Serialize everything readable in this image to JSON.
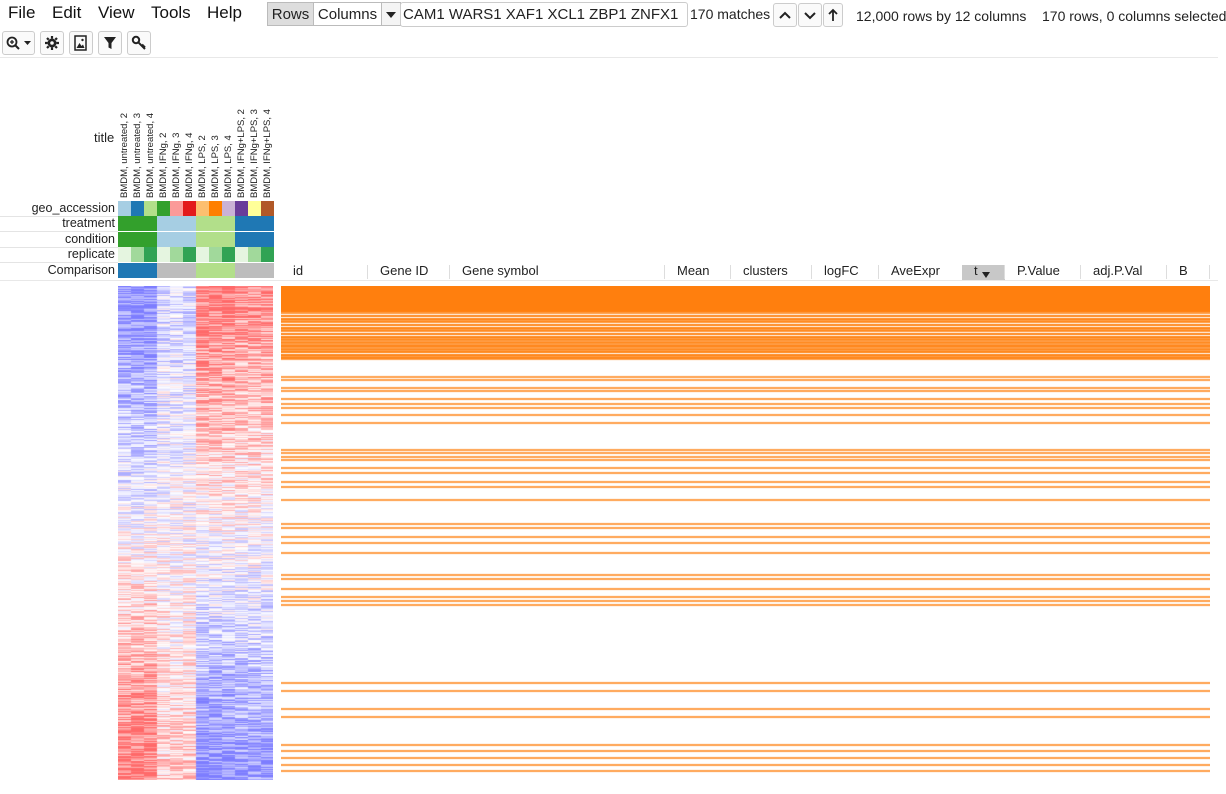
{
  "menu": [
    "File",
    "Edit",
    "View",
    "Tools",
    "Help"
  ],
  "toggle": {
    "rows": "Rows",
    "columns": "Columns"
  },
  "search": {
    "value": "CAM1 WARS1 XAF1 XCL1 ZBP1 ZNFX1"
  },
  "matches": "170 matches",
  "summary": {
    "dims": "12,000 rows by 12 columns",
    "selection": "170 rows, 0 columns selected"
  },
  "toolbar_icons": [
    "zoom-icon",
    "gear-icon",
    "image-icon",
    "filter-icon",
    "key-icon"
  ],
  "annotation_rows": [
    "geo_accession",
    "treatment",
    "condition",
    "replicate",
    "Comparison"
  ],
  "title_label": "title",
  "columns": [
    "BMDM, untreated, 2",
    "BMDM, untreated, 3",
    "BMDM, untreated, 4",
    "BMDM, IFNg, 2",
    "BMDM, IFNg, 3",
    "BMDM, IFNg, 4",
    "BMDM, LPS, 2",
    "BMDM, LPS, 3",
    "BMDM, LPS, 4",
    "BMDM, IFNg+LPS, 2",
    "BMDM, IFNg+LPS, 3",
    "BMDM, IFNg+LPS, 4"
  ],
  "annotation_colors": {
    "geo_accession": [
      "#a6cee3",
      "#1f78b4",
      "#b2df8a",
      "#33a02c",
      "#fb9a99",
      "#e31a1c",
      "#fdbf6f",
      "#ff7f00",
      "#cab2d6",
      "#6a3d9a",
      "#ffff99",
      "#b15928"
    ],
    "treatment": [
      "#33a02c",
      "#33a02c",
      "#33a02c",
      "#a6cee3",
      "#a6cee3",
      "#a6cee3",
      "#b2df8a",
      "#b2df8a",
      "#b2df8a",
      "#1f78b4",
      "#1f78b4",
      "#1f78b4"
    ],
    "condition": [
      "#33a02c",
      "#33a02c",
      "#33a02c",
      "#a6cee3",
      "#a6cee3",
      "#a6cee3",
      "#b2df8a",
      "#b2df8a",
      "#b2df8a",
      "#1f78b4",
      "#1f78b4",
      "#1f78b4"
    ],
    "replicate": [
      "#e5f5e0",
      "#a1d99b",
      "#31a354",
      "#e5f5e0",
      "#a1d99b",
      "#31a354",
      "#e5f5e0",
      "#a1d99b",
      "#31a354",
      "#e5f5e0",
      "#a1d99b",
      "#31a354"
    ],
    "Comparison": [
      "#1f78b4",
      "#1f78b4",
      "#1f78b4",
      "#bdbdbd",
      "#bdbdbd",
      "#bdbdbd",
      "#b2df8a",
      "#b2df8a",
      "#b2df8a",
      "#bdbdbd",
      "#bdbdbd",
      "#bdbdbd"
    ]
  },
  "table_headers": [
    "id",
    "Gene ID",
    "Gene symbol",
    "Mean",
    "clusters",
    "logFC",
    "AveExpr",
    "t",
    "P.Value",
    "adj.P.Val",
    "B"
  ],
  "sorted_column": "t",
  "colors": {
    "highlight": "#ff7f0e",
    "heat_high": "#ff6b6b",
    "heat_low": "#7f7fff"
  }
}
